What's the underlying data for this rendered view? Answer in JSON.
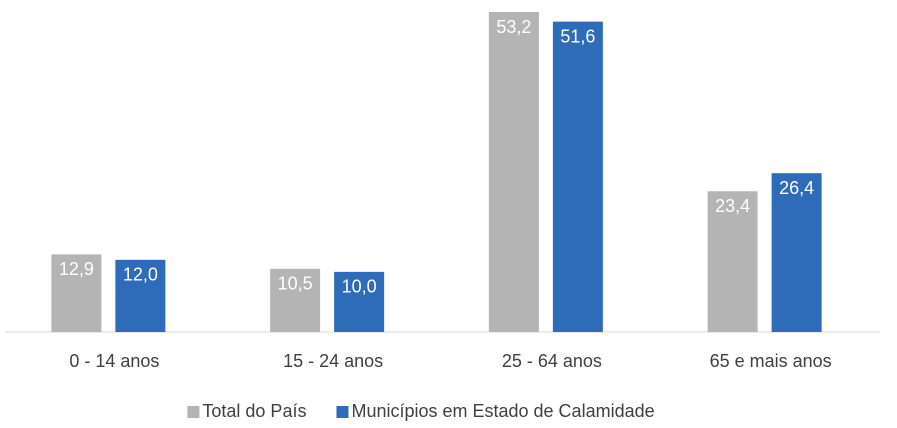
{
  "chart_data": {
    "type": "bar",
    "categories": [
      "0 - 14 anos",
      "15 - 24 anos",
      "25 - 64 anos",
      "65 e mais anos"
    ],
    "series": [
      {
        "name": "Total do País",
        "color": "#b4b4b4",
        "values": [
          12.9,
          10.5,
          53.2,
          23.4
        ],
        "value_labels": [
          "12,9",
          "10,5",
          "53,2",
          "23,4"
        ]
      },
      {
        "name": "Municípios em Estado de Calamidade",
        "color": "#2e6bb8",
        "values": [
          12.0,
          10.0,
          51.6,
          26.4
        ],
        "value_labels": [
          "12,0",
          "10,0",
          "51,6",
          "26,4"
        ]
      }
    ],
    "legend": "bottom"
  }
}
